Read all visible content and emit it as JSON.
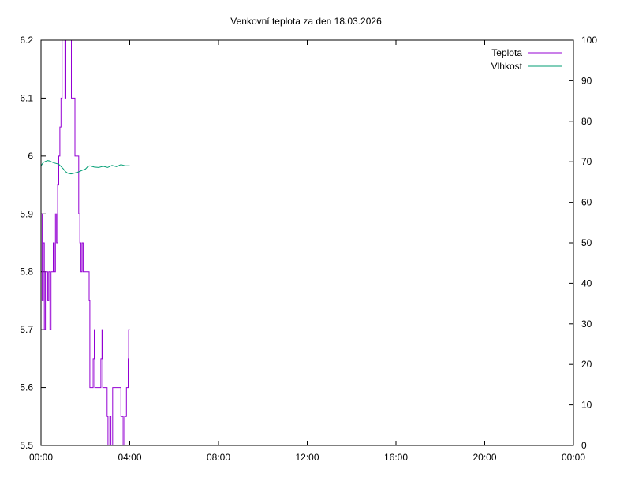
{
  "chart_data": {
    "type": "line",
    "title": "Venkovní teplota za den 18.03.2026",
    "xlabel": "",
    "ylabel": "",
    "y2label": "",
    "xlim": [
      0,
      24
    ],
    "ylim": [
      5.5,
      6.2
    ],
    "y2lim": [
      0,
      100
    ],
    "x_ticks": [
      0,
      4,
      8,
      12,
      16,
      20,
      24
    ],
    "x_tick_labels": [
      "00:00",
      "04:00",
      "08:00",
      "12:00",
      "16:00",
      "20:00",
      "00:00"
    ],
    "y_ticks": [
      "5.5",
      "5.6",
      "5.7",
      "5.8",
      "5.9",
      "6",
      "6.1",
      "6.2"
    ],
    "y2_ticks": [
      "0",
      "10",
      "20",
      "30",
      "40",
      "50",
      "60",
      "70",
      "80",
      "90",
      "100"
    ],
    "grid": false,
    "legend_position": "top-right",
    "series": [
      {
        "name": "Teplota",
        "axis": "left",
        "color": "#9400d3",
        "style": "steps",
        "x": [
          0,
          0.05,
          0.1,
          0.15,
          0.2,
          0.3,
          0.35,
          0.4,
          0.45,
          0.55,
          0.6,
          0.65,
          0.7,
          0.75,
          0.8,
          0.85,
          0.9,
          0.95,
          1.0,
          1.08,
          1.12,
          1.3,
          1.37,
          1.53,
          1.7,
          1.75,
          1.8,
          1.85,
          1.9,
          2.17,
          2.2,
          2.35,
          2.4,
          2.42,
          2.7,
          2.75,
          2.78,
          2.98,
          3.02,
          3.1,
          3.15,
          3.23,
          3.6,
          3.7,
          3.77,
          3.85,
          3.93,
          3.95,
          4.0
        ],
        "y": [
          5.9,
          5.75,
          5.85,
          5.7,
          5.8,
          5.75,
          5.8,
          5.7,
          5.8,
          5.85,
          5.8,
          5.9,
          5.85,
          5.95,
          6.0,
          6.05,
          6.1,
          6.2,
          6.25,
          6.1,
          6.25,
          6.2,
          6.1,
          6.0,
          5.9,
          5.85,
          5.8,
          5.85,
          5.8,
          5.75,
          5.6,
          5.65,
          5.7,
          5.6,
          5.65,
          5.7,
          5.6,
          5.55,
          5.45,
          5.55,
          5.45,
          5.6,
          5.55,
          5.45,
          5.55,
          5.6,
          5.65,
          5.7,
          5.7
        ]
      },
      {
        "name": "Vlhkost",
        "axis": "right",
        "color": "#009e73",
        "style": "line",
        "x": [
          0,
          0.1,
          0.2,
          0.3,
          0.4,
          0.5,
          0.6,
          0.8,
          1.0,
          1.1,
          1.2,
          1.35,
          1.5,
          1.7,
          1.85,
          2.0,
          2.1,
          2.2,
          2.4,
          2.6,
          2.8,
          3.0,
          3.2,
          3.4,
          3.6,
          3.8,
          4.0
        ],
        "y": [
          69.0,
          69.8,
          70.1,
          70.3,
          70.2,
          69.9,
          69.7,
          69.4,
          68.3,
          67.6,
          67.2,
          67.0,
          67.2,
          67.5,
          67.9,
          68.2,
          68.8,
          69.0,
          68.7,
          68.6,
          68.9,
          68.6,
          69.1,
          68.8,
          69.3,
          69.0,
          69.0
        ]
      }
    ]
  }
}
